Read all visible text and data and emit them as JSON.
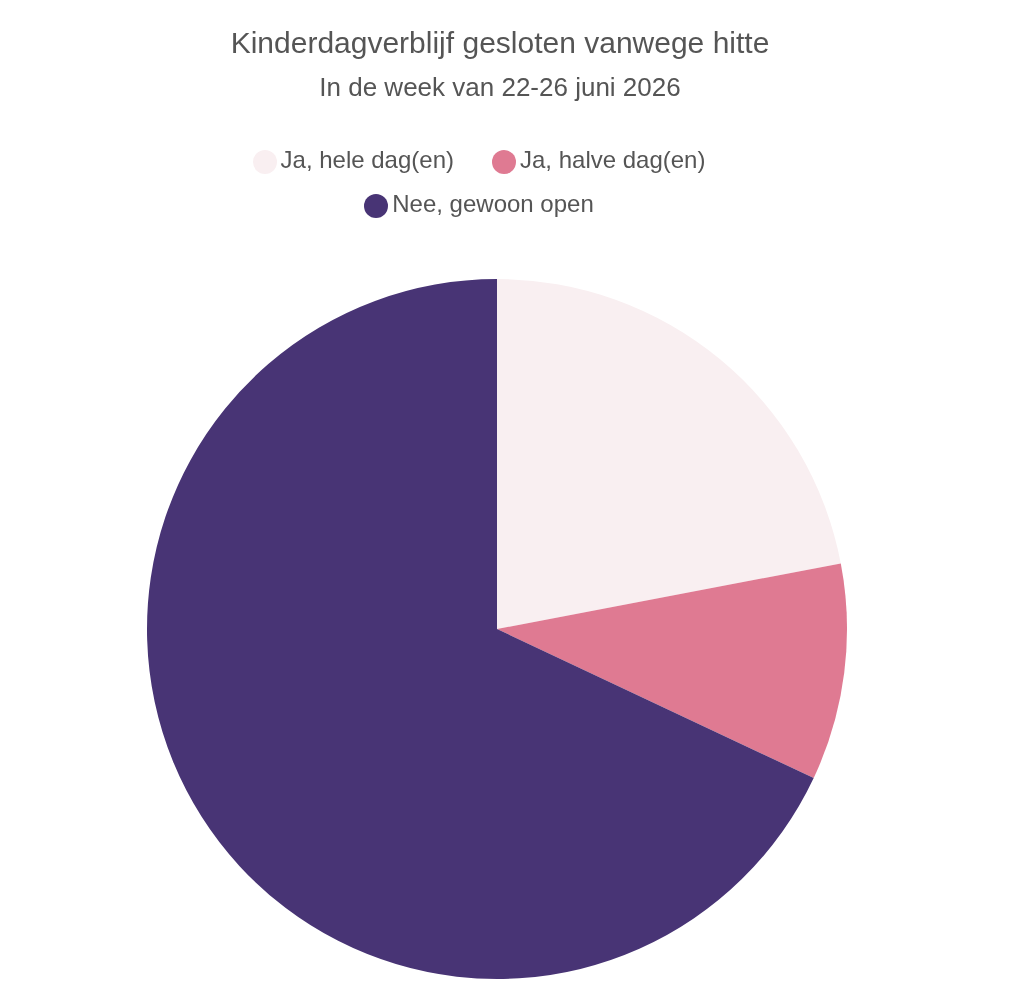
{
  "chart_data": {
    "type": "pie",
    "title": "Kinderdagverblijf gesloten vanwege hitte",
    "subtitle": "In de week van 22-26 juni 2026",
    "categories": [
      "Ja, hele dag(en)",
      "Ja, halve dag(en)",
      "Nee, gewoon open"
    ],
    "values": [
      22,
      10,
      68
    ],
    "colors": [
      "#f9eff1",
      "#df7a92",
      "#483475"
    ],
    "legend": "top"
  }
}
